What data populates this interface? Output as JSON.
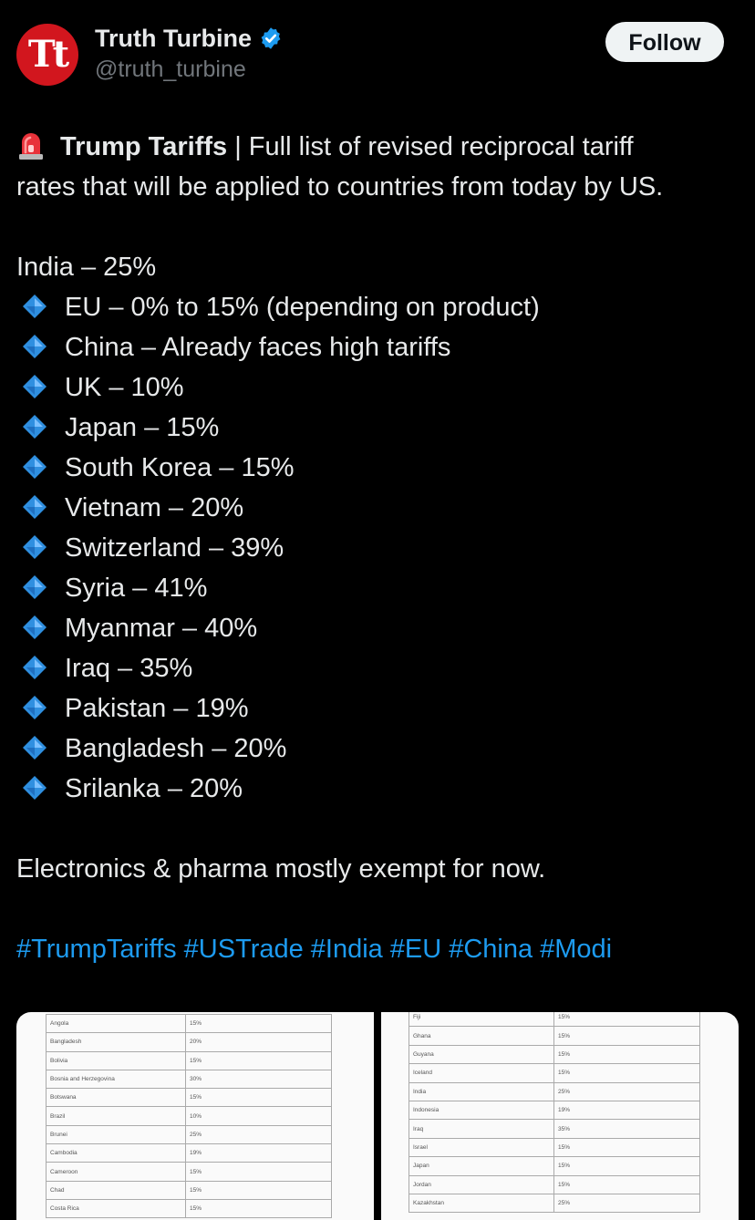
{
  "author": {
    "avatar_text": "Tt",
    "display_name": "Truth Turbine",
    "handle": "@truth_turbine",
    "verified": true,
    "verified_icon": "verified-badge-icon",
    "avatar_color": "#d2161e"
  },
  "follow_label": "Follow",
  "tweet": {
    "headline_bold": "Trump Tariffs",
    "headline_rest": " | Full list of revised reciprocal tariff",
    "headline_line2": "rates that will be applied to countries from today by US.",
    "headline_icon": "rotating-light-siren-icon",
    "first_item": "India – 25%",
    "bullet_icon": "blue-diamond-icon",
    "items": [
      "EU – 0% to 15% (depending on product)",
      "China – Already faces high tariffs",
      "UK – 10%",
      "Japan – 15%",
      "South Korea – 15%",
      "Vietnam – 20%",
      "Switzerland – 39%",
      "Syria – 41%",
      "Myanmar – 40%",
      "Iraq – 35%",
      "Pakistan – 19%",
      "Bangladesh – 20%",
      "Srilanka – 20%"
    ],
    "note": "Electronics & pharma mostly exempt for now.",
    "hashtags": [
      "#TrumpTariffs",
      "#USTrade",
      "#India",
      "#EU",
      "#China",
      "#Modi"
    ]
  },
  "media": {
    "image1_rows": [
      [
        "Angola",
        "15%"
      ],
      [
        "Bangladesh",
        "20%"
      ],
      [
        "Bolivia",
        "15%"
      ],
      [
        "Bosnia and Herzegovina",
        "30%"
      ],
      [
        "Botswana",
        "15%"
      ],
      [
        "Brazil",
        "10%"
      ],
      [
        "Brunei",
        "25%"
      ],
      [
        "Cambodia",
        "19%"
      ],
      [
        "Cameroon",
        "15%"
      ],
      [
        "Chad",
        "15%"
      ],
      [
        "Costa Rica",
        "15%"
      ]
    ],
    "image2_rows": [
      [
        "Fiji",
        "15%"
      ],
      [
        "Ghana",
        "15%"
      ],
      [
        "Guyana",
        "15%"
      ],
      [
        "Iceland",
        "15%"
      ],
      [
        "India",
        "25%"
      ],
      [
        "Indonesia",
        "19%"
      ],
      [
        "Iraq",
        "35%"
      ],
      [
        "Israel",
        "15%"
      ],
      [
        "Japan",
        "15%"
      ],
      [
        "Jordan",
        "15%"
      ],
      [
        "Kazakhstan",
        "25%"
      ]
    ]
  },
  "colors": {
    "background": "#000000",
    "text": "#e7e9ea",
    "secondary_text": "#71767b",
    "link": "#1d9bf0",
    "follow_button_bg": "#eff3f4",
    "verified_badge": "#1d9bf0",
    "bullet_diamond": "#2f8fe0",
    "siren": "#e8323a"
  }
}
